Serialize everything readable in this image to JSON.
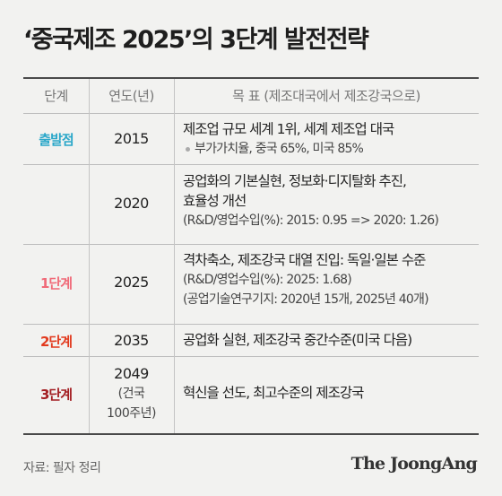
{
  "title": "‘중국제조 2025’의 3단계 발전전략",
  "header": {
    "stage": "단계",
    "year": "연도",
    "year_unit": "(년)",
    "goal": "목 표",
    "goal_note": "(제조대국에서 제조강국으로)"
  },
  "rows": [
    {
      "stage": "출발점",
      "stage_color": "#2aa7c9",
      "year": "2015",
      "goal_lines": [
        "제조업 규모 세계 1위, 세계 제조업 대국"
      ],
      "bullet": "부가가치율, 중국 65%, 미국 85%"
    },
    {
      "stage": "",
      "year": "2020",
      "goal_lines": [
        "공업화의 기본실현, 정보화·디지탈화 추진,",
        "효율성 개선"
      ],
      "note_lines": [
        "(R&D/영업수입(%): 2015: 0.95 => 2020: 1.26)"
      ]
    },
    {
      "stage": "1단계",
      "stage_color": "#f06a78",
      "year": "2025",
      "goal_lines": [
        "격차축소, 제조강국 대열 진입: 독일·일본 수준"
      ],
      "note_lines": [
        "(R&D/영업수입(%): 2025: 1.68)",
        "(공업기술연구기지: 2020년 15개, 2025년 40개)"
      ]
    },
    {
      "stage": "2단계",
      "stage_color": "#e23a1e",
      "year": "2035",
      "goal_lines": [
        "공업화 실현, 제조강국 중간수준(미국 다음)"
      ]
    },
    {
      "stage": "3단계",
      "stage_color": "#a31e22",
      "year": "2049",
      "year_sub": [
        "(건국",
        "100주년)"
      ],
      "goal_lines": [
        "혁신을 선도, 최고수준의 제조강국"
      ]
    }
  ],
  "source": "자료: 필자 정리",
  "logo": "The JoongAng"
}
